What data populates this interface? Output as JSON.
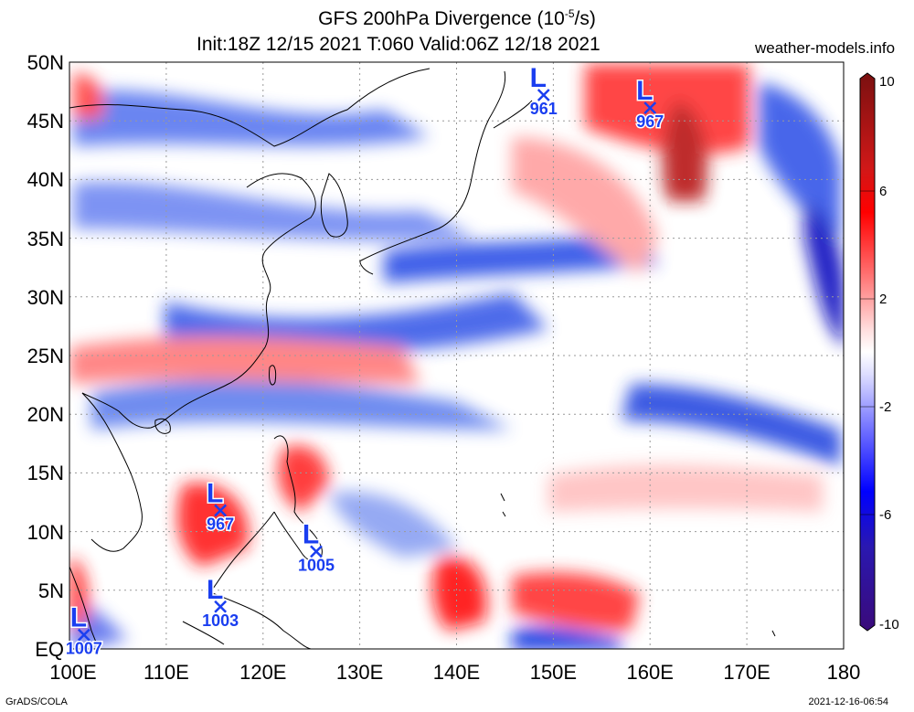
{
  "title": {
    "line1_prefix": "GFS 200hPa Divergence (10",
    "line1_exp": "-5",
    "line1_suffix": "/s)",
    "line2": "Init:18Z 12/15 2021 T:060 Valid:06Z 12/18 2021"
  },
  "site": "weather-models.info",
  "footer": {
    "left": "GrADS/COLA",
    "right": "2021-12-16-06:54"
  },
  "axes": {
    "lat_labels": [
      "50N",
      "45N",
      "40N",
      "35N",
      "30N",
      "25N",
      "20N",
      "15N",
      "10N",
      "5N",
      "EQ"
    ],
    "lon_labels": [
      "100E",
      "110E",
      "120E",
      "130E",
      "140E",
      "150E",
      "160E",
      "170E",
      "180"
    ]
  },
  "colorbar": {
    "labels": [
      "10",
      "6",
      "2",
      "-2",
      "-6",
      "-10"
    ],
    "colors": [
      "#7a1010",
      "#b32020",
      "#ff0000",
      "#ff6060",
      "#ffaaaa",
      "#ffe6e6",
      "#ffffff",
      "#e6e6ff",
      "#aaaaff",
      "#6060ff",
      "#0000ff",
      "#2020b3",
      "#3a0a7a"
    ]
  },
  "lows": [
    {
      "label": "L",
      "pressure": "961",
      "lon": 149,
      "lat": 47.2
    },
    {
      "label": "L",
      "pressure": "967",
      "lon": 160,
      "lat": 46.1
    },
    {
      "label": "L",
      "pressure": "967",
      "lon": 115.6,
      "lat": 11.8
    },
    {
      "label": "L",
      "pressure": "1005",
      "lon": 125.5,
      "lat": 8.3
    },
    {
      "label": "L",
      "pressure": "1003",
      "lon": 115.6,
      "lat": 3.6
    },
    {
      "label": "L",
      "pressure": "1007",
      "lon": 101.5,
      "lat": 1.2
    }
  ]
}
